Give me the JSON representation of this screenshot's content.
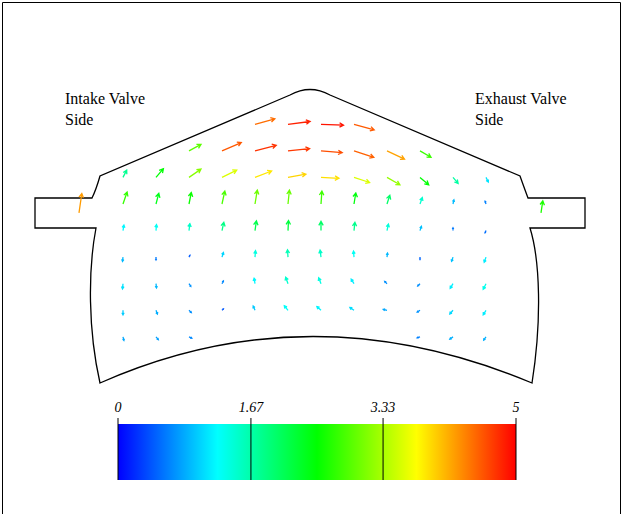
{
  "chart_data": {
    "type": "quiver",
    "annotations": [
      "Intake Valve Side",
      "Exhaust Valve Side"
    ],
    "xlim": [
      0,
      100
    ],
    "ylim": [
      0,
      70
    ],
    "tick_labels": false,
    "colorbar": {
      "range": [
        0,
        5
      ],
      "ticks": [
        0,
        1.67,
        3.33,
        5
      ]
    },
    "x": [
      40,
      46,
      52,
      58,
      28,
      34,
      40,
      46,
      52,
      58,
      64,
      70,
      16,
      22,
      28,
      34,
      40,
      46,
      52,
      58,
      64,
      70,
      76,
      82,
      16,
      22,
      28,
      34,
      40,
      46,
      52,
      58,
      64,
      70,
      76,
      82,
      16,
      22,
      28,
      34,
      40,
      46,
      52,
      58,
      64,
      70,
      76,
      82,
      16,
      22,
      28,
      34,
      40,
      46,
      52,
      58,
      64,
      70,
      76,
      82,
      16,
      22,
      28,
      34,
      40,
      46,
      52,
      58,
      64,
      70,
      76,
      82,
      16,
      22,
      28,
      34,
      40,
      46,
      52,
      58,
      64,
      70,
      76,
      82,
      16,
      22,
      28,
      70,
      76,
      82,
      8,
      92
    ],
    "y": [
      60,
      60,
      60,
      60,
      54,
      54,
      54,
      54,
      54,
      54,
      54,
      54,
      48,
      48,
      48,
      48,
      48,
      48,
      48,
      48,
      48,
      48,
      48,
      48,
      42,
      42,
      42,
      42,
      42,
      42,
      42,
      42,
      42,
      42,
      42,
      42,
      36,
      36,
      36,
      36,
      36,
      36,
      36,
      36,
      36,
      36,
      36,
      36,
      30,
      30,
      30,
      30,
      30,
      30,
      30,
      30,
      30,
      30,
      30,
      30,
      24,
      24,
      24,
      24,
      24,
      24,
      24,
      24,
      24,
      24,
      24,
      24,
      18,
      18,
      18,
      18,
      18,
      18,
      18,
      18,
      18,
      18,
      18,
      18,
      12,
      12,
      12,
      12,
      12,
      12,
      40,
      40
    ],
    "u": [
      4.3,
      4.8,
      4.9,
      4.4,
      2.6,
      4.2,
      4.6,
      4.7,
      4.6,
      4.3,
      3.8,
      2.4,
      0.8,
      1.6,
      2.6,
      3.2,
      3.6,
      3.9,
      3.9,
      3.4,
      2.8,
      1.9,
      1.1,
      0.5,
      0.9,
      0.6,
      0.5,
      0.6,
      0.5,
      0.3,
      0.2,
      0.4,
      0.6,
      0.5,
      0.2,
      -0.2,
      0.2,
      0.1,
      0.2,
      0.4,
      0.3,
      0.1,
      0.0,
      0.2,
      0.3,
      0.3,
      0.0,
      -0.2,
      -0.1,
      0.0,
      0.2,
      0.3,
      0.1,
      -0.1,
      -0.2,
      -0.1,
      0.1,
      0.0,
      -0.3,
      -0.4,
      -0.1,
      0.1,
      0.4,
      0.3,
      -0.2,
      -0.5,
      -0.5,
      -0.6,
      -0.5,
      -0.5,
      -0.6,
      -0.6,
      0.0,
      0.3,
      0.5,
      0.3,
      -0.4,
      -0.8,
      -0.9,
      -0.9,
      -0.8,
      -0.6,
      -0.7,
      -0.6,
      0.2,
      0.5,
      0.6,
      -0.6,
      -0.7,
      -0.5,
      0.6,
      0.4
    ],
    "v": [
      1.2,
      0.6,
      -0.2,
      -1.2,
      1.4,
      1.8,
      1.2,
      0.5,
      -0.4,
      -1.4,
      -1.8,
      -1.4,
      1.6,
      1.9,
      1.8,
      1.6,
      1.4,
      0.7,
      -0.2,
      -1.1,
      -1.6,
      -1.6,
      -1.3,
      -1.0,
      2.6,
      2.3,
      2.5,
      2.8,
      3.0,
      3.0,
      2.8,
      2.4,
      1.9,
      1.4,
      0.9,
      0.6,
      1.2,
      1.3,
      1.5,
      1.8,
      2.1,
      2.2,
      2.0,
      1.8,
      1.4,
      0.9,
      0.6,
      -0.5,
      -0.9,
      -0.6,
      0.4,
      1.0,
      1.4,
      1.6,
      1.5,
      1.3,
      0.9,
      -0.5,
      -0.9,
      -1.1,
      -1.1,
      -0.9,
      -0.6,
      0.6,
      1.2,
      1.4,
      1.3,
      1.0,
      0.5,
      -0.5,
      -1.0,
      -1.2,
      -1.0,
      -0.8,
      -0.5,
      0.3,
      0.9,
      1.0,
      0.8,
      0.6,
      0.2,
      -0.4,
      -0.8,
      -1.0,
      -0.8,
      -0.6,
      -0.3,
      -0.2,
      -0.5,
      -0.7,
      4.2,
      2.6
    ]
  }
}
